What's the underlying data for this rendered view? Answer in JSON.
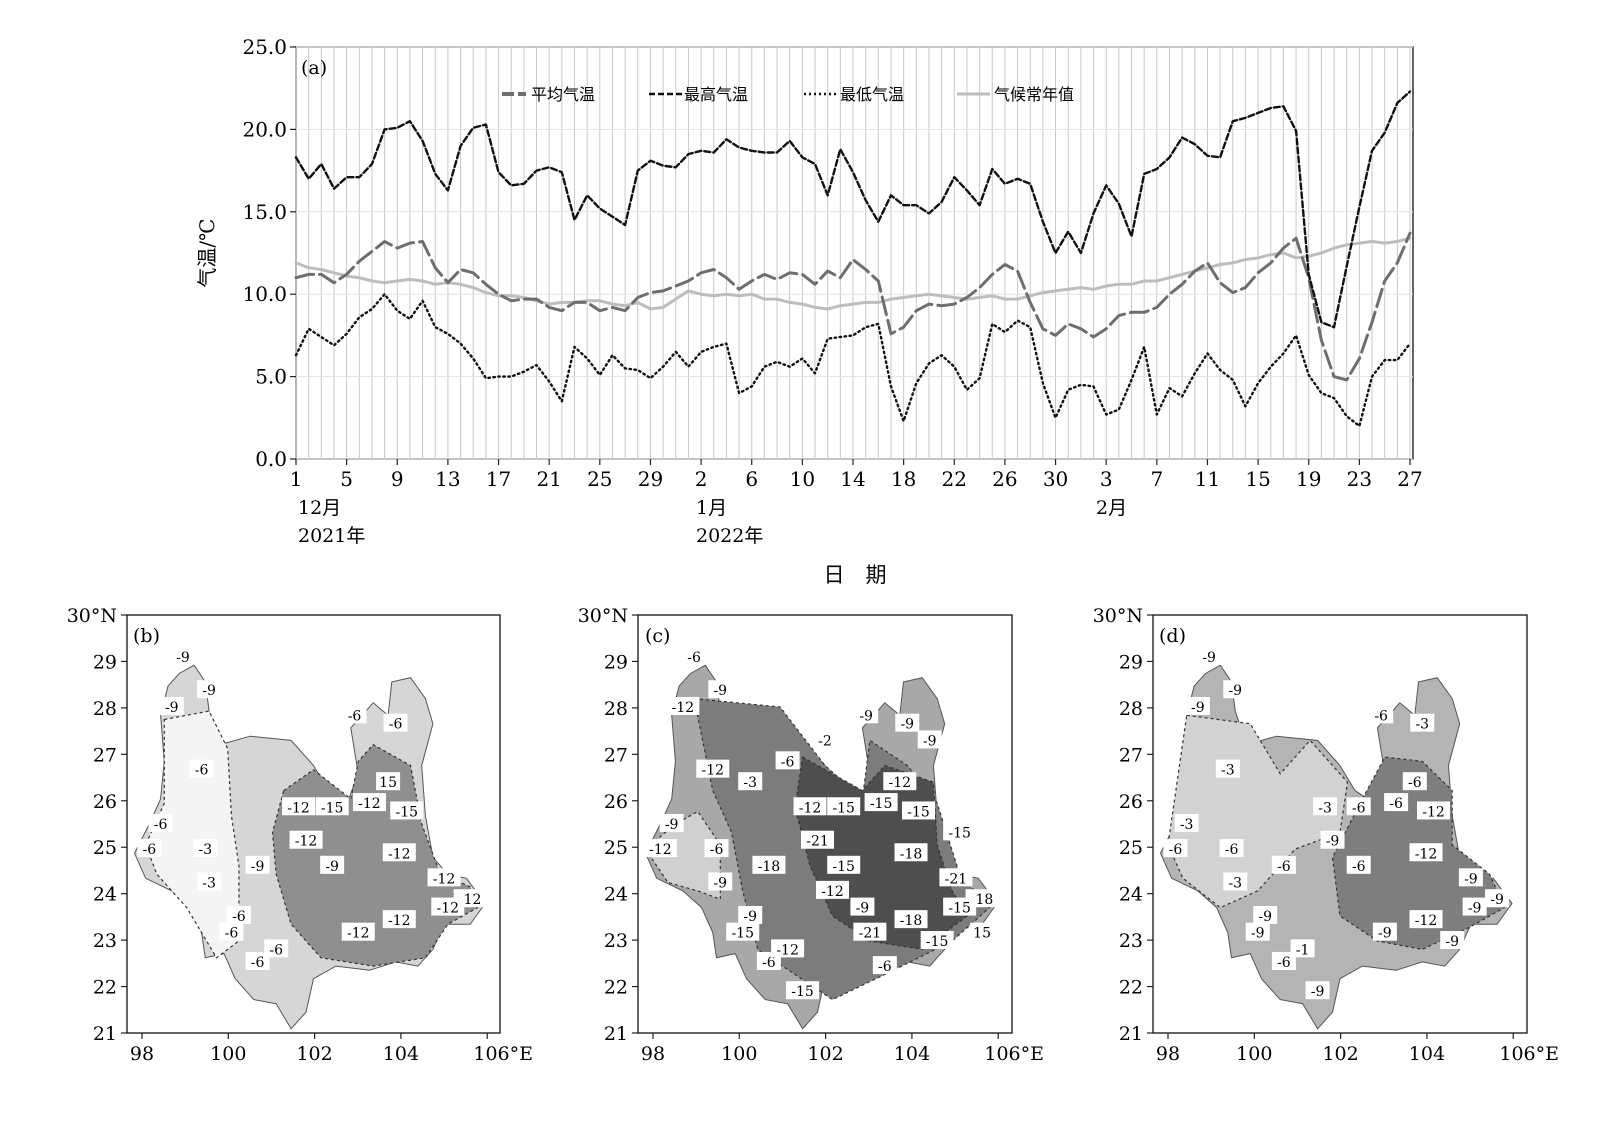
{
  "chart_data": [
    {
      "type": "line",
      "panel_label": "(a)",
      "xlabel": "日　期",
      "ylabel": "气温/℃",
      "ylim": [
        0,
        25
      ],
      "yticks": [
        "0.0",
        "5.0",
        "10.0",
        "15.0",
        "20.0",
        "25.0"
      ],
      "xtick_labels": [
        "1",
        "5",
        "9",
        "13",
        "17",
        "21",
        "25",
        "29",
        "2",
        "6",
        "10",
        "14",
        "18",
        "22",
        "26",
        "30",
        "3",
        "7",
        "11",
        "15",
        "19",
        "23",
        "27"
      ],
      "month_labels": [
        "12月",
        "1月",
        "2月"
      ],
      "year_labels": [
        "2021年",
        "2022年"
      ],
      "dates_note_days": 89,
      "x_start": "2021-12-01",
      "series": [
        {
          "name": "平均气温",
          "style": "long-dash",
          "color": "#6e6e6e",
          "values": [
            11.0,
            11.2,
            11.2,
            10.7,
            11.2,
            12.0,
            12.6,
            13.2,
            12.8,
            13.1,
            13.2,
            11.6,
            10.7,
            11.5,
            11.3,
            10.6,
            10.0,
            9.6,
            9.7,
            9.7,
            9.2,
            9.0,
            9.5,
            9.5,
            9.0,
            9.2,
            9.0,
            9.8,
            10.1,
            10.2,
            10.5,
            10.8,
            11.3,
            11.5,
            11.0,
            10.3,
            10.8,
            11.2,
            10.9,
            11.3,
            11.2,
            10.6,
            11.4,
            11.0,
            12.1,
            11.5,
            10.8,
            7.6,
            8.0,
            9.0,
            9.4,
            9.3,
            9.4,
            9.8,
            10.4,
            11.2,
            11.8,
            11.4,
            9.5,
            7.9,
            7.5,
            8.2,
            7.9,
            7.4,
            7.9,
            8.7,
            8.9,
            8.9,
            9.2,
            10.0,
            10.6,
            11.4,
            11.9,
            10.7,
            10.1,
            10.4,
            11.3,
            11.9,
            12.8,
            13.4,
            11.0,
            7.2,
            5.0,
            4.8,
            6.1,
            8.3,
            10.8,
            11.9,
            13.7
          ]
        },
        {
          "name": "最高气温",
          "style": "dash",
          "color": "#111111",
          "values": [
            18.3,
            17.0,
            17.9,
            16.4,
            17.1,
            17.1,
            17.9,
            20.0,
            20.1,
            20.5,
            19.3,
            17.3,
            16.3,
            19.0,
            20.1,
            20.3,
            17.4,
            16.6,
            16.7,
            17.5,
            17.7,
            17.4,
            14.5,
            16.0,
            15.2,
            14.7,
            14.2,
            17.5,
            18.1,
            17.8,
            17.7,
            18.5,
            18.7,
            18.6,
            19.4,
            18.9,
            18.7,
            18.6,
            18.6,
            19.3,
            18.3,
            17.9,
            16.0,
            18.8,
            17.4,
            15.7,
            14.4,
            16.0,
            15.4,
            15.4,
            14.9,
            15.6,
            17.1,
            16.3,
            15.4,
            17.6,
            16.7,
            17.0,
            16.7,
            14.4,
            12.5,
            13.8,
            12.5,
            14.9,
            16.6,
            15.5,
            13.5,
            17.3,
            17.6,
            18.3,
            19.5,
            19.1,
            18.4,
            18.3,
            20.5,
            20.7,
            21.0,
            21.3,
            21.4,
            19.9,
            11.2,
            8.3,
            8.0,
            11.7,
            15.3,
            18.7,
            19.8,
            21.6,
            22.3
          ]
        },
        {
          "name": "最低气温",
          "style": "dotted",
          "color": "#111111",
          "values": [
            6.3,
            7.9,
            7.4,
            6.9,
            7.6,
            8.6,
            9.1,
            10.0,
            9.0,
            8.5,
            9.6,
            8.0,
            7.6,
            7.0,
            6.1,
            4.9,
            5.0,
            5.0,
            5.3,
            5.7,
            4.7,
            3.5,
            6.8,
            6.1,
            5.1,
            6.3,
            5.5,
            5.4,
            4.9,
            5.6,
            6.5,
            5.6,
            6.5,
            6.8,
            7.0,
            4.0,
            4.4,
            5.6,
            5.9,
            5.6,
            6.1,
            5.2,
            7.3,
            7.4,
            7.5,
            8.0,
            8.2,
            4.4,
            2.3,
            4.6,
            5.8,
            6.3,
            5.6,
            4.2,
            4.9,
            8.2,
            7.7,
            8.4,
            8.0,
            4.6,
            2.5,
            4.2,
            4.5,
            4.4,
            2.7,
            3.0,
            4.8,
            6.8,
            2.7,
            4.3,
            3.8,
            5.2,
            6.4,
            5.4,
            4.8,
            3.2,
            4.6,
            5.6,
            6.4,
            7.5,
            5.1,
            4.0,
            3.7,
            2.6,
            2.0,
            5.0,
            6.0,
            6.0,
            7.0
          ]
        },
        {
          "name": "气候常年值",
          "style": "solid",
          "color": "#bdbdbd",
          "values": [
            11.9,
            11.6,
            11.5,
            11.3,
            11.1,
            11.0,
            10.8,
            10.7,
            10.8,
            10.9,
            10.8,
            10.6,
            10.7,
            10.6,
            10.4,
            10.1,
            9.9,
            9.9,
            9.8,
            9.6,
            9.4,
            9.5,
            9.5,
            9.6,
            9.6,
            9.4,
            9.3,
            9.5,
            9.1,
            9.2,
            9.7,
            10.2,
            10.0,
            9.9,
            10.0,
            9.9,
            10.0,
            9.7,
            9.7,
            9.5,
            9.4,
            9.2,
            9.1,
            9.3,
            9.4,
            9.5,
            9.5,
            9.7,
            9.8,
            9.9,
            10.0,
            9.9,
            9.8,
            9.7,
            9.8,
            9.9,
            9.7,
            9.7,
            9.9,
            10.1,
            10.2,
            10.3,
            10.4,
            10.3,
            10.5,
            10.6,
            10.6,
            10.8,
            10.8,
            11.0,
            11.2,
            11.4,
            11.6,
            11.8,
            11.9,
            12.1,
            12.2,
            12.4,
            12.5,
            12.2,
            12.3,
            12.5,
            12.8,
            13.0,
            13.1,
            13.2,
            13.1,
            13.2,
            13.4
          ]
        }
      ]
    },
    {
      "type": "map",
      "panel_label": "(b)",
      "lat_ticks": [
        "30°N",
        "29",
        "28",
        "27",
        "26",
        "25",
        "24",
        "23",
        "22",
        "21"
      ],
      "lon_ticks": [
        "98",
        "100",
        "102",
        "104",
        "106°E"
      ],
      "contour_labels": [
        "-9",
        "-9",
        "-9",
        "-6",
        "-6",
        "-6",
        "-6",
        "-6",
        "-3",
        "-3",
        "-6",
        "-6",
        "-12",
        "-15",
        "-12",
        "15",
        "-15",
        "-12",
        "-12",
        "-12",
        "-12",
        "-12",
        "-12",
        "-12",
        "-9",
        "-9",
        "-6",
        "-6"
      ]
    },
    {
      "type": "map",
      "panel_label": "(c)",
      "lat_ticks": [
        "30°N",
        "29",
        "28",
        "27",
        "26",
        "25",
        "24",
        "23",
        "22",
        "21"
      ],
      "lon_ticks": [
        "98",
        "100",
        "102",
        "104",
        "106°E"
      ],
      "contour_labels": [
        "-6",
        "-9",
        "-12",
        "-9",
        "-9",
        "-12",
        "-9",
        "-12",
        "-6",
        "-9",
        "-9",
        "-6",
        "-12",
        "-15",
        "-15",
        "-12",
        "-15",
        "-18",
        "-21",
        "-18",
        "-18",
        "-15",
        "-21",
        "-21",
        "-18",
        "-15",
        "-15",
        "-12",
        "-15",
        "-15",
        "-6",
        "-9",
        "-12",
        "-3",
        "-6",
        "-9",
        "-2",
        "-15",
        "15"
      ]
    },
    {
      "type": "map",
      "panel_label": "(d)",
      "lat_ticks": [
        "30°N",
        "29",
        "28",
        "27",
        "26",
        "25",
        "24",
        "23",
        "22",
        "21"
      ],
      "lon_ticks": [
        "98",
        "100",
        "102",
        "104",
        "106°E"
      ],
      "contour_labels": [
        "-9",
        "-9",
        "-9",
        "-6",
        "-3",
        "-3",
        "-3",
        "-6",
        "-6",
        "-3",
        "-9",
        "-6",
        "-3",
        "-6",
        "-6",
        "-6",
        "-12",
        "-12",
        "-9",
        "-9",
        "-12",
        "-9",
        "-9",
        "-9",
        "-6",
        "-6",
        "-9",
        "-1",
        "-9",
        "-9"
      ]
    }
  ]
}
